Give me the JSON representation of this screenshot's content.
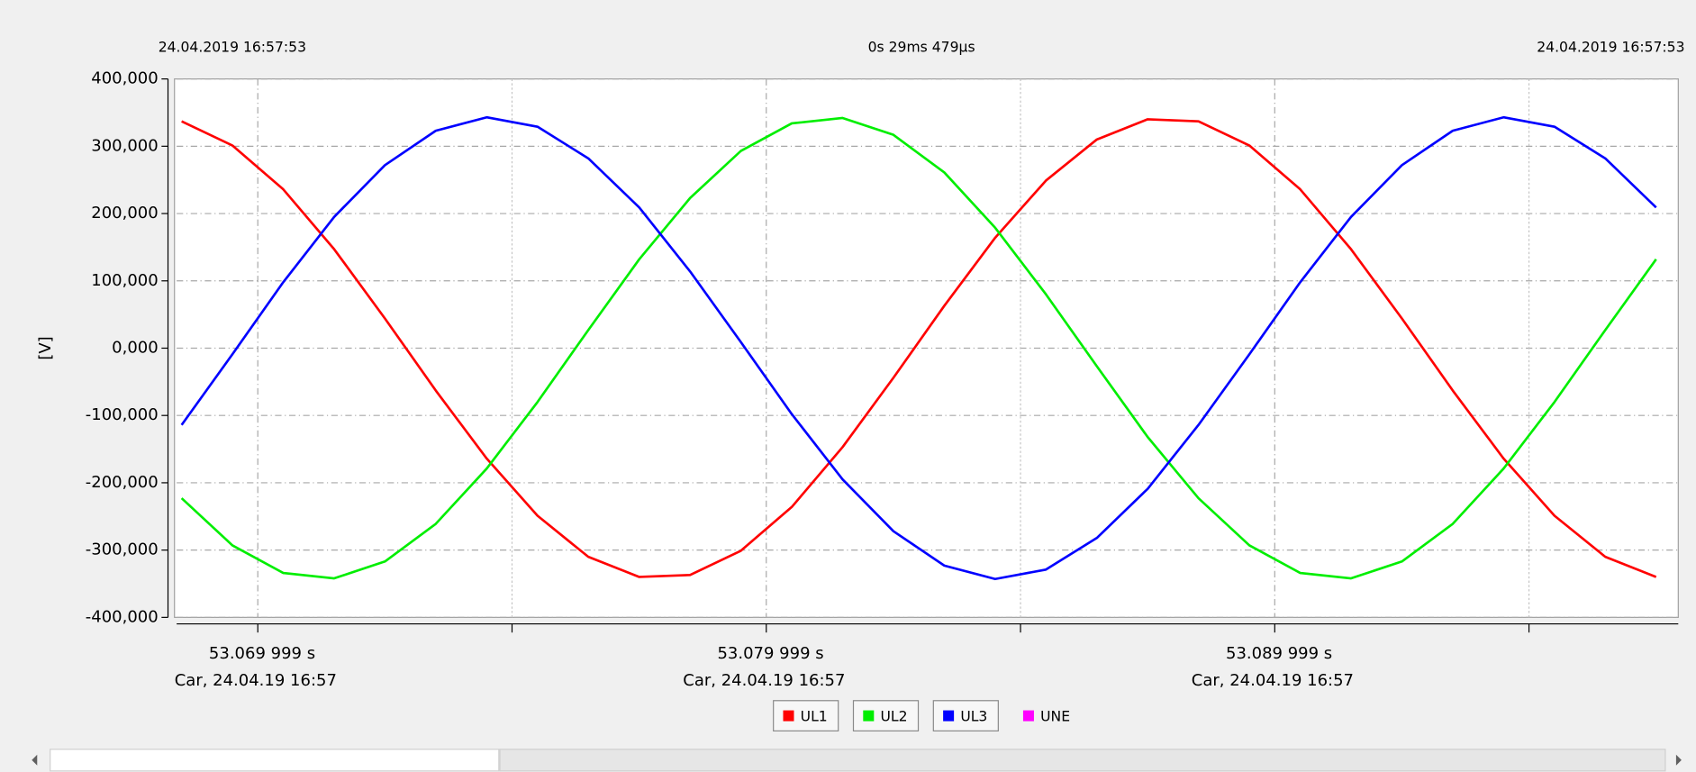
{
  "chart_data": {
    "type": "line",
    "header_left": "24.04.2019 16:57:53",
    "header_center": "0s 29ms 479µs",
    "header_right": "24.04.2019 16:57:53",
    "y_label": "[V]",
    "x": [
      53.0685,
      53.0695,
      53.0705,
      53.0715,
      53.0725,
      53.0735,
      53.0745,
      53.0755,
      53.0765,
      53.0775,
      53.0785,
      53.0795,
      53.0805,
      53.0815,
      53.0825,
      53.0835,
      53.0845,
      53.0855,
      53.0865,
      53.0875,
      53.0885,
      53.0895,
      53.0905,
      53.0915,
      53.0925,
      53.0935,
      53.0945,
      53.0955,
      53.0965,
      53.0975
    ],
    "series": [
      {
        "name": "UL1",
        "color": "#ff0000",
        "visible": true,
        "values": [
          337,
          301,
          236,
          147,
          44,
          -63,
          -164,
          -249,
          -310,
          -340,
          -337,
          -301,
          -236,
          -147,
          -44,
          63,
          164,
          249,
          310,
          340,
          337,
          301,
          236,
          147,
          44,
          -63,
          -164,
          -249,
          -310,
          -340
        ]
      },
      {
        "name": "UL2",
        "color": "#00ee00",
        "visible": true,
        "values": [
          -223,
          -293,
          -334,
          -342,
          -317,
          -261,
          -179,
          -80,
          27,
          132,
          223,
          293,
          334,
          342,
          317,
          261,
          179,
          80,
          -27,
          -132,
          -223,
          -293,
          -334,
          -342,
          -317,
          -261,
          -179,
          -80,
          27,
          132
        ]
      },
      {
        "name": "UL3",
        "color": "#0000ff",
        "visible": true,
        "values": [
          -114,
          -9,
          98,
          195,
          272,
          323,
          343,
          329,
          282,
          209,
          114,
          9,
          -98,
          -195,
          -272,
          -323,
          -343,
          -329,
          -282,
          -209,
          -114,
          -9,
          98,
          195,
          272,
          323,
          343,
          329,
          282,
          209
        ]
      },
      {
        "name": "UNE",
        "color": "#ff00ff",
        "visible": false,
        "values": [
          null,
          null,
          null,
          null,
          null,
          null,
          null,
          null,
          null,
          null,
          null,
          null,
          null,
          null,
          null,
          null,
          null,
          null,
          null,
          null,
          null,
          null,
          null,
          null,
          null,
          null,
          null,
          null,
          null,
          null
        ]
      }
    ],
    "xlim": [
      53.068403,
      53.097935
    ],
    "xticks": [
      {
        "value": 53.069999,
        "label": "53.069 999 s",
        "sublabel": "Car, 24.04.19 16:57"
      },
      {
        "value": 53.079999,
        "label": "53.079 999 s",
        "sublabel": "Car, 24.04.19 16:57"
      },
      {
        "value": 53.089999,
        "label": "53.089 999 s",
        "sublabel": "Car, 24.04.19 16:57"
      }
    ],
    "xminor_ticks": [
      53.074999,
      53.084999,
      53.094999
    ],
    "ylim": [
      -400,
      400
    ],
    "yticks": [
      {
        "value": 400,
        "label": "400,000"
      },
      {
        "value": 300,
        "label": "300,000"
      },
      {
        "value": 200,
        "label": "200,000"
      },
      {
        "value": 100,
        "label": "100,000"
      },
      {
        "value": 0,
        "label": "0,000"
      },
      {
        "value": -100,
        "label": "-100,000"
      },
      {
        "value": -200,
        "label": "-200,000"
      },
      {
        "value": -300,
        "label": "-300,000"
      },
      {
        "value": -400,
        "label": "-400,000"
      }
    ],
    "grid": true
  }
}
